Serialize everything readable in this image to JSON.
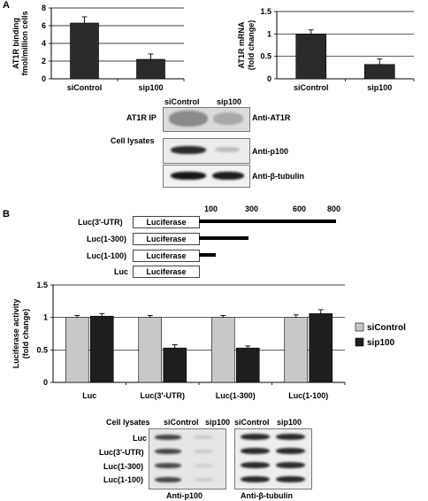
{
  "panel_a": {
    "letter": "A",
    "ip_label": "AT1R IP",
    "lysate_label": "Cell lysates",
    "blot_headers": [
      "siControl",
      "sip100"
    ],
    "blot_antibodies": [
      "Anti-AT1R",
      "Anti-p100",
      "Anti-β-tubulin"
    ]
  },
  "panel_b": {
    "letter": "B",
    "constructs": [
      {
        "name": "Luc(3'-UTR)",
        "box": "Luciferase"
      },
      {
        "name": "Luc(1-300)",
        "box": "Luciferase"
      },
      {
        "name": "Luc(1-100)",
        "box": "Luciferase"
      },
      {
        "name": "Luc",
        "box": "Luciferase"
      }
    ],
    "scale_ticks": [
      "100",
      "300",
      "600",
      "800"
    ],
    "bottom_lysate_label": "Cell lysates",
    "bottom_headers": [
      "siControl",
      "sip100",
      "siControl",
      "sip100"
    ],
    "bottom_rows": [
      "Luc",
      "Luc(3'-UTR)",
      "Luc(1-300)",
      "Luc(1-100)"
    ],
    "bottom_antibodies": [
      "Anti-p100",
      "Anti-β-tubulin"
    ]
  },
  "chart_data": [
    {
      "type": "bar",
      "ylabel": "AT1R binding fmol/million cells",
      "categories": [
        "siControl",
        "sip100"
      ],
      "values": [
        6.3,
        2.2
      ],
      "errors": [
        0.7,
        0.6
      ],
      "ylim": [
        0,
        8
      ],
      "yticks": [
        0,
        2,
        4,
        6,
        8
      ],
      "grid": true,
      "color": "#2b2b2b"
    },
    {
      "type": "bar",
      "ylabel": "AT1R mRNA (fold change)",
      "categories": [
        "siControl",
        "sip100"
      ],
      "values": [
        1.0,
        0.32
      ],
      "errors": [
        0.09,
        0.12
      ],
      "ylim": [
        0,
        1.5
      ],
      "yticks": [
        0,
        0.5,
        1,
        1.5
      ],
      "grid": true,
      "color": "#2b2b2b"
    },
    {
      "type": "bar",
      "ylabel": "Luciferase activity (fold change)",
      "categories": [
        "Luc",
        "Luc(3'-UTR)",
        "Luc(1-300)",
        "Luc(1-100)"
      ],
      "series": [
        {
          "name": "siControl",
          "values": [
            1.0,
            1.0,
            1.0,
            1.0
          ],
          "errors": [
            0.03,
            0.03,
            0.03,
            0.04
          ],
          "color": "#c8c8c8"
        },
        {
          "name": "sip100",
          "values": [
            1.02,
            0.53,
            0.53,
            1.06
          ],
          "errors": [
            0.04,
            0.05,
            0.03,
            0.06
          ],
          "color": "#1e1e1e"
        }
      ],
      "ylim": [
        0,
        1.5
      ],
      "yticks": [
        0,
        0.5,
        1,
        1.5
      ],
      "grid": true,
      "legend": "right"
    }
  ]
}
